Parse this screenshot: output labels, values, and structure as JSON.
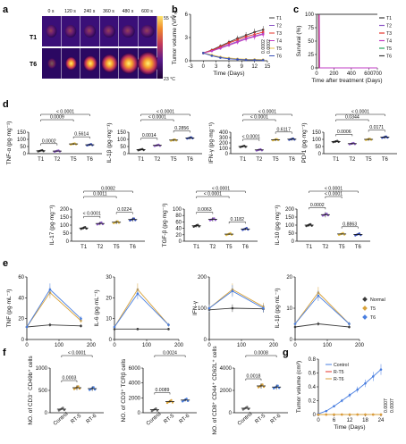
{
  "panel_labels": [
    "a",
    "b",
    "c",
    "d",
    "e",
    "f",
    "g"
  ],
  "panel_a": {
    "time_labels": [
      "0 s",
      "120 s",
      "240 s",
      "360 s",
      "480 s",
      "600 s"
    ],
    "rows": [
      "T1",
      "T6"
    ],
    "scale_max": "55 °C",
    "scale_min": "23 °C"
  },
  "colors": {
    "T1": "#3b3b3b",
    "T2": "#8e5ac8",
    "T3": "#e5332a",
    "T4": "#c23cc4",
    "T5": "#e8c24a",
    "T6": "#3950b8",
    "green": "#26a35b",
    "blue_alt": "#4a7fe0",
    "gold_alt": "#d8a23a"
  },
  "chart_data": [
    {
      "id": "b",
      "type": "line",
      "xlabel": "Time (Days)",
      "ylabel": "Tumor volume (V/V₀)",
      "xlim": [
        -3,
        15
      ],
      "xticks": [
        -3,
        0,
        3,
        6,
        9,
        12,
        15
      ],
      "ylim": [
        0,
        6
      ],
      "yticks": [
        0,
        3,
        6
      ],
      "x": [
        0,
        2,
        4,
        6,
        8,
        10,
        12,
        14
      ],
      "series": [
        {
          "name": "T1",
          "values": [
            1,
            1.4,
            1.9,
            2.4,
            2.9,
            3.3,
            3.7,
            4.0
          ]
        },
        {
          "name": "T2",
          "values": [
            1,
            1.3,
            1.7,
            2.1,
            2.5,
            2.9,
            3.2,
            3.5
          ]
        },
        {
          "name": "T3",
          "values": [
            1,
            1.35,
            1.8,
            2.3,
            2.7,
            3.1,
            3.4,
            3.7
          ]
        },
        {
          "name": "T4",
          "values": [
            1,
            1.25,
            1.6,
            2.0,
            2.4,
            2.8,
            3.1,
            3.4
          ]
        },
        {
          "name": "T5",
          "values": [
            1,
            0.75,
            0.5,
            0.35,
            0.25,
            0.2,
            0.18,
            0.15
          ]
        },
        {
          "name": "T6",
          "values": [
            1,
            0.65,
            0.4,
            0.25,
            0.18,
            0.12,
            0.1,
            0.08
          ]
        }
      ],
      "annotations": [
        "0.0002",
        "0.0002"
      ]
    },
    {
      "id": "c",
      "type": "line",
      "xlabel": "Time after treatment (Days)",
      "ylabel": "Survival (%)",
      "xlim": [
        0,
        700
      ],
      "xticks": [
        0,
        200,
        400,
        600,
        700
      ],
      "ylim": [
        0,
        100
      ],
      "yticks": [
        0,
        25,
        50,
        75,
        100
      ],
      "series": [
        {
          "name": "T1",
          "x": [
            0,
            22,
            26,
            700
          ],
          "values": [
            100,
            100,
            0,
            0
          ]
        },
        {
          "name": "T2",
          "x": [
            0,
            25,
            29,
            700
          ],
          "values": [
            100,
            100,
            0,
            0
          ]
        },
        {
          "name": "T3",
          "x": [
            0,
            28,
            32,
            700
          ],
          "values": [
            100,
            100,
            0,
            0
          ]
        },
        {
          "name": "T4",
          "x": [
            0,
            32,
            36,
            700
          ],
          "values": [
            100,
            100,
            0,
            0
          ]
        },
        {
          "name": "T5",
          "x": [
            0,
            700
          ],
          "values": [
            100,
            100
          ]
        },
        {
          "name": "T6",
          "x": [
            0,
            700
          ],
          "values": [
            100,
            100
          ]
        }
      ]
    },
    {
      "id": "d1",
      "type": "scatter",
      "ylabel": "TNF-α (pg·mg⁻¹)",
      "categories": [
        "T1",
        "T2",
        "T5",
        "T6"
      ],
      "ylim": [
        0,
        150
      ],
      "yticks": [
        0,
        50,
        100,
        150
      ],
      "values": [
        20,
        18,
        68,
        62
      ],
      "comparisons": [
        [
          "T1",
          "T2",
          "0.0002"
        ],
        [
          "T1",
          "T5",
          "0.0009"
        ],
        [
          "T5",
          "T6",
          "0.5614"
        ],
        [
          "T1",
          "T6",
          "< 0.0001"
        ]
      ]
    },
    {
      "id": "d2",
      "type": "scatter",
      "ylabel": "IL-1β (pg·mg⁻¹)",
      "categories": [
        "T1",
        "T2",
        "T5",
        "T6"
      ],
      "ylim": [
        0,
        150
      ],
      "yticks": [
        0,
        50,
        100,
        150
      ],
      "values": [
        28,
        58,
        95,
        110
      ],
      "comparisons": [
        [
          "T1",
          "T2",
          "0.0014"
        ],
        [
          "T1",
          "T5",
          "< 0.0001"
        ],
        [
          "T5",
          "T6",
          "0.2856"
        ],
        [
          "T1",
          "T6",
          "< 0.0001"
        ]
      ]
    },
    {
      "id": "d3",
      "type": "scatter",
      "ylabel": "IFN-γ (pg·mg⁻¹)",
      "categories": [
        "T1",
        "T2",
        "T5",
        "T6"
      ],
      "ylim": [
        0,
        400
      ],
      "yticks": [
        0,
        100,
        200,
        300,
        400
      ],
      "values": [
        135,
        70,
        260,
        270
      ],
      "comparisons": [
        [
          "T1",
          "T2",
          "< 0.0001"
        ],
        [
          "T1",
          "T5",
          "< 0.0001"
        ],
        [
          "T5",
          "T6",
          "0.6117"
        ],
        [
          "T1",
          "T6",
          "< 0.0001"
        ]
      ]
    },
    {
      "id": "d4",
      "type": "scatter",
      "ylabel": "PD-1 (pg·mg⁻¹)",
      "categories": [
        "T1",
        "T2",
        "T5",
        "T6"
      ],
      "ylim": [
        0,
        150
      ],
      "yticks": [
        0,
        50,
        100,
        150
      ],
      "values": [
        85,
        70,
        100,
        115
      ],
      "comparisons": [
        [
          "T1",
          "T2",
          "0.0006"
        ],
        [
          "T1",
          "T5",
          "0.0344"
        ],
        [
          "T5",
          "T6",
          "0.0171"
        ],
        [
          "T1",
          "T6",
          "< 0.0001"
        ]
      ]
    },
    {
      "id": "d5",
      "type": "scatter",
      "ylabel": "IL-17 (pg·mg⁻¹)",
      "categories": [
        "T1",
        "T2",
        "T5",
        "T6"
      ],
      "ylim": [
        0,
        200
      ],
      "yticks": [
        0,
        50,
        100,
        150,
        200
      ],
      "values": [
        82,
        110,
        118,
        135
      ],
      "comparisons": [
        [
          "T1",
          "T2",
          "< 0.0001"
        ],
        [
          "T1",
          "T5",
          "0.0011"
        ],
        [
          "T5",
          "T6",
          "0.0224"
        ],
        [
          "T1",
          "T6",
          "0.0082"
        ]
      ]
    },
    {
      "id": "d6",
      "type": "scatter",
      "ylabel": "TGF-β (pg·mg⁻¹)",
      "categories": [
        "T1",
        "T2",
        "T5",
        "T6"
      ],
      "ylim": [
        0,
        100
      ],
      "yticks": [
        0,
        20,
        40,
        60,
        80,
        100
      ],
      "values": [
        48,
        68,
        22,
        38
      ],
      "comparisons": [
        [
          "T1",
          "T2",
          "0.0063"
        ],
        [
          "T1",
          "T5",
          "< 0.0001"
        ],
        [
          "T5",
          "T6",
          "0.1182"
        ],
        [
          "T1",
          "T6",
          "< 0.0001"
        ]
      ]
    },
    {
      "id": "d7",
      "type": "scatter",
      "ylabel": "IL-10 (pg·mg⁻¹)",
      "categories": [
        "T1",
        "T2",
        "T5",
        "T6"
      ],
      "ylim": [
        0,
        200
      ],
      "yticks": [
        0,
        50,
        100,
        150,
        200
      ],
      "values": [
        100,
        165,
        45,
        42
      ],
      "comparisons": [
        [
          "T1",
          "T2",
          "0.0002"
        ],
        [
          "T2",
          "T5",
          "< 0.0001"
        ],
        [
          "T5",
          "T6",
          "0.8863"
        ],
        [
          "T1",
          "T6",
          "< 0.0001"
        ]
      ]
    },
    {
      "id": "e1",
      "type": "line",
      "ylabel": "TNF (pg·mL⁻¹)",
      "x": [
        0,
        72,
        168
      ],
      "xticks": [
        0,
        100,
        200
      ],
      "ylim": [
        0,
        60
      ],
      "yticks": [
        0,
        20,
        40,
        60
      ],
      "series": [
        {
          "name": "Normal",
          "values": [
            12,
            14,
            13
          ]
        },
        {
          "name": "T5",
          "values": [
            12,
            45,
            18
          ]
        },
        {
          "name": "T6",
          "values": [
            12,
            48,
            20
          ]
        }
      ]
    },
    {
      "id": "e2",
      "type": "line",
      "ylabel": "IL-6 (pg·mL⁻¹)",
      "x": [
        0,
        72,
        168
      ],
      "xticks": [
        0,
        100,
        200
      ],
      "ylim": [
        0,
        30
      ],
      "yticks": [
        0,
        10,
        20,
        30
      ],
      "series": [
        {
          "name": "Normal",
          "values": [
            5,
            5,
            5
          ]
        },
        {
          "name": "T5",
          "values": [
            6,
            24,
            7
          ]
        },
        {
          "name": "T6",
          "values": [
            6,
            22,
            7
          ]
        }
      ]
    },
    {
      "id": "e3",
      "type": "line",
      "ylabel": "IFN-γ",
      "x": [
        0,
        72,
        168
      ],
      "xticks": [
        0,
        100,
        200
      ],
      "ylim": [
        0,
        200
      ],
      "yticks": [
        0,
        100,
        200
      ],
      "series": [
        {
          "name": "Normal",
          "values": [
            95,
            100,
            98
          ]
        },
        {
          "name": "T5",
          "values": [
            100,
            160,
            105
          ]
        },
        {
          "name": "T6",
          "values": [
            100,
            155,
            100
          ]
        }
      ]
    },
    {
      "id": "e4",
      "type": "line",
      "ylabel": "IL-1β (pg·mL⁻¹)",
      "x": [
        0,
        72,
        168
      ],
      "xticks": [
        0,
        100,
        200
      ],
      "ylim": [
        0,
        20
      ],
      "yticks": [
        0,
        10,
        20
      ],
      "series": [
        {
          "name": "Normal",
          "values": [
            4,
            5,
            4
          ]
        },
        {
          "name": "T5",
          "values": [
            5,
            15,
            5
          ]
        },
        {
          "name": "T6",
          "values": [
            5,
            14,
            5
          ]
        }
      ]
    },
    {
      "id": "f1",
      "type": "scatter",
      "ylabel": "NO. of CD3⁻ CD49b⁺ cells",
      "categories": [
        "Control",
        "RT-5",
        "RT-6"
      ],
      "ylim": [
        0,
        1000
      ],
      "yticks": [
        0,
        500,
        1000
      ],
      "values": [
        80,
        560,
        540
      ],
      "comparisons": [
        [
          "Control",
          "RT-5",
          "0.0003"
        ],
        [
          "Control",
          "RT-6",
          "< 0.0001"
        ]
      ]
    },
    {
      "id": "f2",
      "type": "scatter",
      "ylabel": "NO. of CD3⁺ TCRβ cells",
      "categories": [
        "Control",
        "RT-5",
        "RT-6"
      ],
      "ylim": [
        0,
        6000
      ],
      "yticks": [
        0,
        2000,
        4000,
        6000
      ],
      "values": [
        400,
        1500,
        1700
      ],
      "comparisons": [
        [
          "Control",
          "RT-5",
          "0.0089"
        ],
        [
          "Control",
          "RT-6",
          "0.0024"
        ]
      ]
    },
    {
      "id": "f3",
      "type": "scatter",
      "ylabel": "NO. of CD8⁺ CD44⁺ CD62L⁺ cells",
      "categories": [
        "Control",
        "RT-5",
        "RT-6"
      ],
      "ylim": [
        0,
        4000
      ],
      "yticks": [
        0,
        2000,
        4000
      ],
      "values": [
        400,
        2400,
        2300
      ],
      "comparisons": [
        [
          "Control",
          "RT-5",
          "0.0018"
        ],
        [
          "Control",
          "RT-6",
          "0.0008"
        ]
      ]
    },
    {
      "id": "g",
      "type": "line",
      "xlabel": "Time (Days)",
      "ylabel": "Tumor volume (cm³)",
      "x": [
        0,
        3,
        6,
        9,
        12,
        15,
        18,
        21,
        24
      ],
      "xticks": [
        0,
        6,
        12,
        18,
        24
      ],
      "ylim": [
        0,
        0.8
      ],
      "yticks": [
        0,
        0.2,
        0.4,
        0.6,
        0.8
      ],
      "series": [
        {
          "name": "Control",
          "values": [
            0.01,
            0.05,
            0.12,
            0.2,
            0.28,
            0.36,
            0.45,
            0.55,
            0.65
          ]
        },
        {
          "name": "R-T5",
          "values": [
            0,
            0,
            0,
            0,
            0,
            0,
            0,
            0,
            0
          ]
        },
        {
          "name": "R-T6",
          "values": [
            0,
            0,
            0,
            0,
            0,
            0,
            0,
            0,
            0
          ]
        }
      ],
      "annotations": [
        "0.0007",
        "0.0007"
      ]
    }
  ]
}
